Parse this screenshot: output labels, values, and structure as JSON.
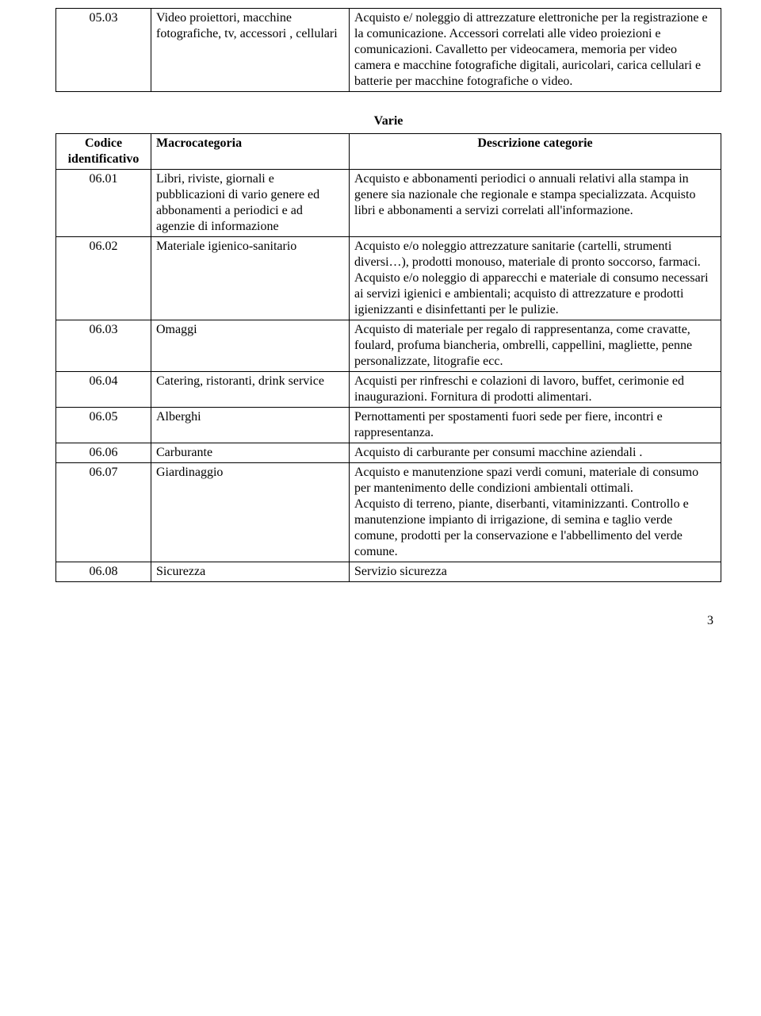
{
  "topTable": {
    "row": {
      "code": "05.03",
      "macro": "Video proiettori, macchine fotografiche, tv, accessori , cellulari",
      "desc": "Acquisto e/ noleggio di attrezzature elettroniche per la registrazione e la comunicazione. Accessori correlati alle video proiezioni e comunicazioni. Cavalletto per videocamera, memoria per video camera e macchine fotografiche digitali, auricolari, carica cellulari e batterie per macchine fotografiche o video."
    }
  },
  "sectionTitle": "Varie",
  "headers": {
    "code": "Codice identificativo",
    "macro": "Macrocategoria",
    "desc": "Descrizione categorie"
  },
  "rows": [
    {
      "code": "06.01",
      "macro": "Libri, riviste, giornali e pubblicazioni di vario genere ed abbonamenti a periodici e ad agenzie di informazione",
      "desc": "Acquisto e abbonamenti periodici o annuali relativi alla stampa in genere sia nazionale che regionale e stampa specializzata. Acquisto libri e abbonamenti a servizi correlati all'informazione."
    },
    {
      "code": "06.02",
      "macro": "Materiale igienico-sanitario",
      "desc": "Acquisto e/o noleggio attrezzature sanitarie (cartelli, strumenti diversi…), prodotti monouso, materiale di pronto soccorso, farmaci.\nAcquisto e/o noleggio di apparecchi e materiale di consumo necessari ai servizi igienici e ambientali; acquisto di attrezzature e prodotti igienizzanti e disinfettanti per le pulizie."
    },
    {
      "code": "06.03",
      "macro": "Omaggi",
      "desc": "Acquisto di materiale per regalo di rappresentanza, come cravatte, foulard, profuma biancheria, ombrelli, cappellini, magliette, penne personalizzate, litografie ecc."
    },
    {
      "code": "06.04",
      "macro": "Catering, ristoranti, drink service",
      "desc": "Acquisti  per rinfreschi e colazioni di lavoro, buffet, cerimonie ed inaugurazioni. Fornitura di prodotti alimentari."
    },
    {
      "code": "06.05",
      "macro": "Alberghi",
      "desc": "Pernottamenti per spostamenti fuori sede per fiere, incontri e rappresentanza."
    },
    {
      "code": "06.06",
      "macro": "Carburante",
      "desc": "Acquisto di carburante per consumi macchine aziendali ."
    },
    {
      "code": "06.07",
      "macro": "Giardinaggio",
      "desc": "Acquisto e manutenzione spazi verdi comuni, materiale di consumo per mantenimento delle condizioni ambientali ottimali.\nAcquisto di terreno, piante, diserbanti, vitaminizzanti. Controllo e manutenzione impianto di irrigazione, di semina e taglio verde comune, prodotti per la conservazione e l'abbellimento del verde comune."
    },
    {
      "code": "06.08",
      "macro": "Sicurezza",
      "desc": "Servizio sicurezza"
    }
  ],
  "pageNumber": "3"
}
